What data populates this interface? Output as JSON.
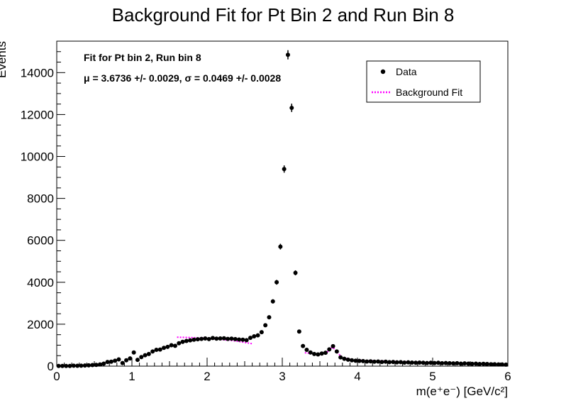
{
  "chart_data": {
    "type": "scatter",
    "title": "Background Fit for Pt Bin 2 and Run Bin 8",
    "xlabel": "m(e⁺e⁻) [GeV/c²]",
    "ylabel": "Events",
    "xlim": [
      0,
      6
    ],
    "ylim": [
      0,
      15500
    ],
    "xticks": [
      0,
      1,
      2,
      3,
      4,
      5,
      6
    ],
    "yticks": [
      0,
      2000,
      4000,
      6000,
      8000,
      10000,
      12000,
      14000
    ],
    "grid": false,
    "annotations": [
      "Fit for Pt bin 2, Run bin 8",
      "μ = 3.6736 +/- 0.0029, σ = 0.0469 +/- 0.0028"
    ],
    "legend_position": "top-right",
    "series": [
      {
        "name": "Data",
        "color": "#000000",
        "x": [
          0.025,
          0.075,
          0.125,
          0.175,
          0.225,
          0.275,
          0.325,
          0.375,
          0.425,
          0.475,
          0.525,
          0.575,
          0.625,
          0.675,
          0.725,
          0.775,
          0.825,
          0.875,
          0.925,
          0.975,
          1.025,
          1.075,
          1.125,
          1.175,
          1.225,
          1.275,
          1.325,
          1.375,
          1.425,
          1.475,
          1.525,
          1.575,
          1.625,
          1.675,
          1.725,
          1.775,
          1.825,
          1.875,
          1.925,
          1.975,
          2.025,
          2.075,
          2.125,
          2.175,
          2.225,
          2.275,
          2.325,
          2.375,
          2.425,
          2.475,
          2.525,
          2.575,
          2.625,
          2.675,
          2.725,
          2.775,
          2.825,
          2.875,
          2.925,
          2.975,
          3.025,
          3.075,
          3.125,
          3.175,
          3.225,
          3.275,
          3.325,
          3.375,
          3.425,
          3.475,
          3.525,
          3.575,
          3.625,
          3.675,
          3.725,
          3.775,
          3.825,
          3.875,
          3.925,
          3.975,
          4.025,
          4.075,
          4.125,
          4.175,
          4.225,
          4.275,
          4.325,
          4.375,
          4.425,
          4.475,
          4.525,
          4.575,
          4.625,
          4.675,
          4.725,
          4.775,
          4.825,
          4.875,
          4.925,
          4.975,
          5.025,
          5.075,
          5.125,
          5.175,
          5.225,
          5.275,
          5.325,
          5.375,
          5.425,
          5.475,
          5.525,
          5.575,
          5.625,
          5.675,
          5.725,
          5.775,
          5.825,
          5.875,
          5.925,
          5.975
        ],
        "y": [
          10,
          10,
          10,
          10,
          20,
          15,
          20,
          30,
          40,
          50,
          60,
          80,
          120,
          200,
          210,
          260,
          320,
          150,
          280,
          370,
          650,
          300,
          430,
          520,
          580,
          700,
          780,
          790,
          870,
          920,
          1000,
          970,
          1090,
          1160,
          1200,
          1230,
          1260,
          1280,
          1300,
          1320,
          1290,
          1340,
          1310,
          1320,
          1330,
          1300,
          1310,
          1290,
          1270,
          1260,
          1240,
          1350,
          1420,
          1470,
          1620,
          1950,
          2330,
          3090,
          4000,
          5700,
          9400,
          14850,
          12320,
          4450,
          1650,
          960,
          780,
          650,
          580,
          560,
          600,
          640,
          800,
          950,
          700,
          420,
          350,
          310,
          280,
          260,
          250,
          240,
          220,
          230,
          210,
          220,
          200,
          210,
          190,
          200,
          180,
          190,
          170,
          180,
          170,
          160,
          170,
          160,
          150,
          160,
          150,
          160,
          140,
          150,
          140,
          130,
          140,
          120,
          130,
          120,
          110,
          120,
          100,
          110,
          100,
          90,
          90,
          80,
          80,
          70
        ]
      },
      {
        "name": "Background Fit",
        "color": "#ff00ff",
        "style": "dotted",
        "x": [
          1.6,
          1.8,
          2.0,
          2.2,
          2.4,
          2.6
        ],
        "y": [
          1380,
          1360,
          1330,
          1270,
          1190,
          1070
        ]
      },
      {
        "name": "",
        "color": "#ff00ff",
        "style": "dotted",
        "x": [
          3.3,
          3.4,
          3.5,
          3.55,
          3.6,
          3.65,
          3.67,
          3.7,
          3.75,
          3.8,
          3.9,
          4.0,
          4.5,
          5.0,
          5.2
        ],
        "y": [
          640,
          600,
          560,
          590,
          680,
          860,
          900,
          800,
          580,
          420,
          320,
          280,
          220,
          170,
          150
        ]
      }
    ]
  }
}
